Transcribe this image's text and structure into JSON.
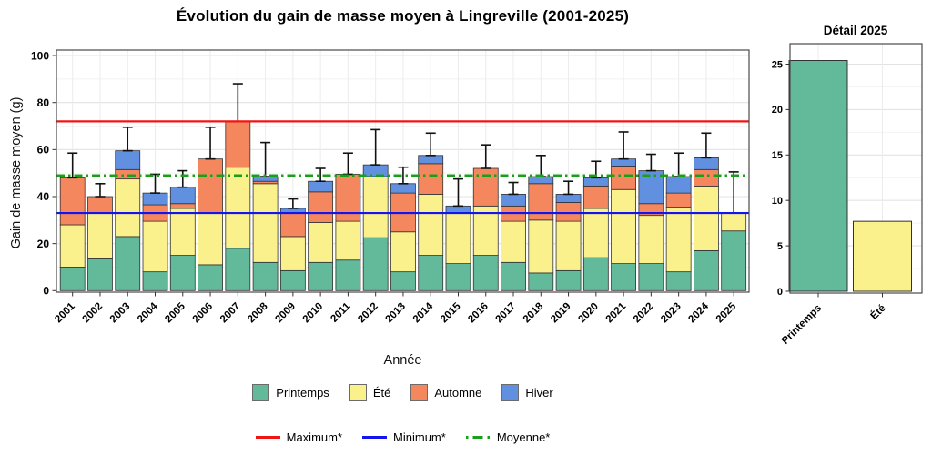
{
  "page_title": "Évolution du gain de masse moyen à Lingreville (2001-2025)",
  "chart_data": [
    {
      "type": "bar",
      "subtype": "stacked-bar-with-errorbars",
      "title": "Évolution du gain de masse moyen à Lingreville (2001-2025)",
      "xlabel": "Année",
      "ylabel": "Gain de masse moyen (g)",
      "ylim": [
        0,
        100
      ],
      "yticks": [
        0,
        20,
        40,
        60,
        80,
        100
      ],
      "grid": "major and minor, light gray, theme_bw style panel with border",
      "legend_position": "bottom",
      "categories": [
        "2001",
        "2002",
        "2003",
        "2004",
        "2005",
        "2006",
        "2007",
        "2008",
        "2009",
        "2010",
        "2011",
        "2012",
        "2013",
        "2014",
        "2015",
        "2016",
        "2017",
        "2018",
        "2019",
        "2020",
        "2021",
        "2022",
        "2023",
        "2024",
        "2025"
      ],
      "series": [
        {
          "name": "Printemps",
          "color": "#62BA9B",
          "values": [
            10,
            13.5,
            23,
            8,
            15,
            11,
            18,
            12,
            8.5,
            12,
            13,
            22.5,
            8,
            15,
            11.5,
            15,
            12,
            7.5,
            8.5,
            14,
            11.5,
            11.5,
            8,
            17,
            25.4
          ]
        },
        {
          "name": "Été",
          "color": "#FBF18C",
          "values": [
            18,
            19.5,
            24.5,
            21.5,
            20,
            22,
            34.5,
            33.5,
            14.5,
            17,
            16.5,
            26,
            17,
            26,
            21.5,
            21,
            17.5,
            22.5,
            21,
            21,
            31.5,
            20.5,
            27.5,
            27.5,
            7.7
          ]
        },
        {
          "name": "Automne",
          "color": "#F5875F",
          "values": [
            20,
            7,
            4,
            7,
            2,
            23,
            19.5,
            1,
            10,
            13,
            20,
            0,
            16.5,
            13,
            0,
            16,
            6.5,
            15.5,
            8,
            9.5,
            10,
            5,
            6,
            7,
            0
          ]
        },
        {
          "name": "Hiver",
          "color": "#6290E0",
          "values": [
            0,
            0,
            8,
            5,
            7,
            0,
            0,
            2,
            2,
            4.5,
            0,
            5,
            4,
            3.5,
            3,
            0,
            5,
            3,
            3.5,
            3.5,
            3,
            14,
            7,
            5,
            0
          ]
        }
      ],
      "error_bar_upper": [
        58.5,
        45.5,
        69.5,
        49.5,
        51,
        69.5,
        88,
        63,
        39,
        52,
        58.5,
        68.5,
        52.5,
        67,
        47.5,
        62,
        46,
        57.5,
        46.5,
        55,
        67.5,
        58,
        58.5,
        67,
        50.5
      ],
      "ref_lines": [
        {
          "label": "Maximum*",
          "value": 72,
          "color": "#F01414",
          "style": "solid"
        },
        {
          "label": "Minimum*",
          "value": 33,
          "color": "#1414F0",
          "style": "solid"
        },
        {
          "label": "Moyenne*",
          "value": 49,
          "color": "#18A018",
          "style": "dashdot"
        }
      ]
    },
    {
      "type": "bar",
      "title": "Détail 2025",
      "categories": [
        "Printemps",
        "Été"
      ],
      "values": [
        25.4,
        7.7
      ],
      "colors": [
        "#62BA9B",
        "#FBF18C"
      ],
      "ylim": [
        0,
        26
      ],
      "yticks": [
        0,
        5,
        10,
        15,
        20,
        25
      ],
      "grid": "major and minor, light gray, panel with border"
    }
  ]
}
